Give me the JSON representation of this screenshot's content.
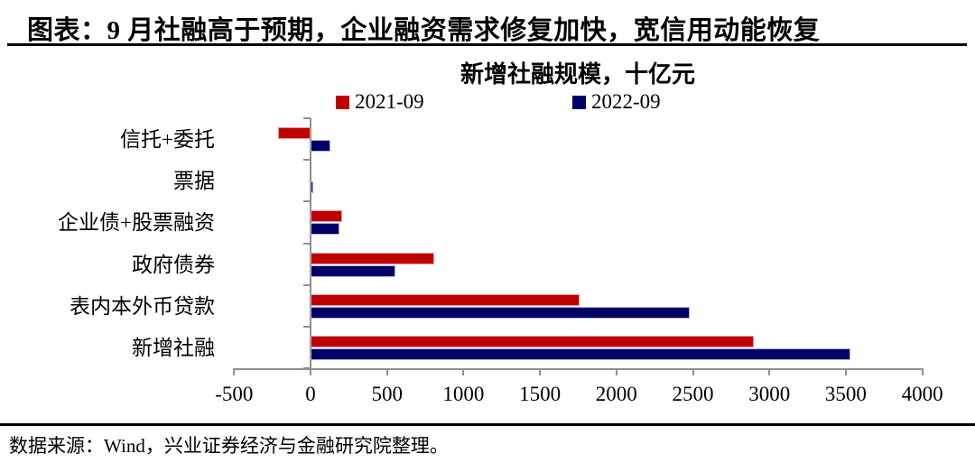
{
  "header": {
    "title": "图表：9 月社融高于预期，企业融资需求修复加快，宽信用动能恢复"
  },
  "chart_data": {
    "type": "bar",
    "orientation": "horizontal",
    "title": "新增社融规模，十亿元",
    "categories": [
      "信托+委托",
      "票据",
      "企业债+股票融资",
      "政府债券",
      "表内本外币贷款",
      "新增社融"
    ],
    "series": [
      {
        "name": "2021-09",
        "color": "#C00000",
        "border_color": "#dda0a0",
        "values": [
          -210,
          0,
          205,
          810,
          1760,
          2900
        ]
      },
      {
        "name": "2022-09",
        "color": "#000066",
        "border_color": "#b0b0d8",
        "values": [
          130,
          18,
          190,
          555,
          2480,
          3530
        ]
      }
    ],
    "xlim": [
      -500,
      4000
    ],
    "xticks": [
      -500,
      0,
      500,
      1000,
      1500,
      2000,
      2500,
      3000,
      3500,
      4000
    ],
    "legend_position": "top",
    "grid": "off",
    "axis_color": "#909090"
  },
  "footer": {
    "source": "数据来源：Wind，兴业证券经济与金融研究院整理。"
  }
}
